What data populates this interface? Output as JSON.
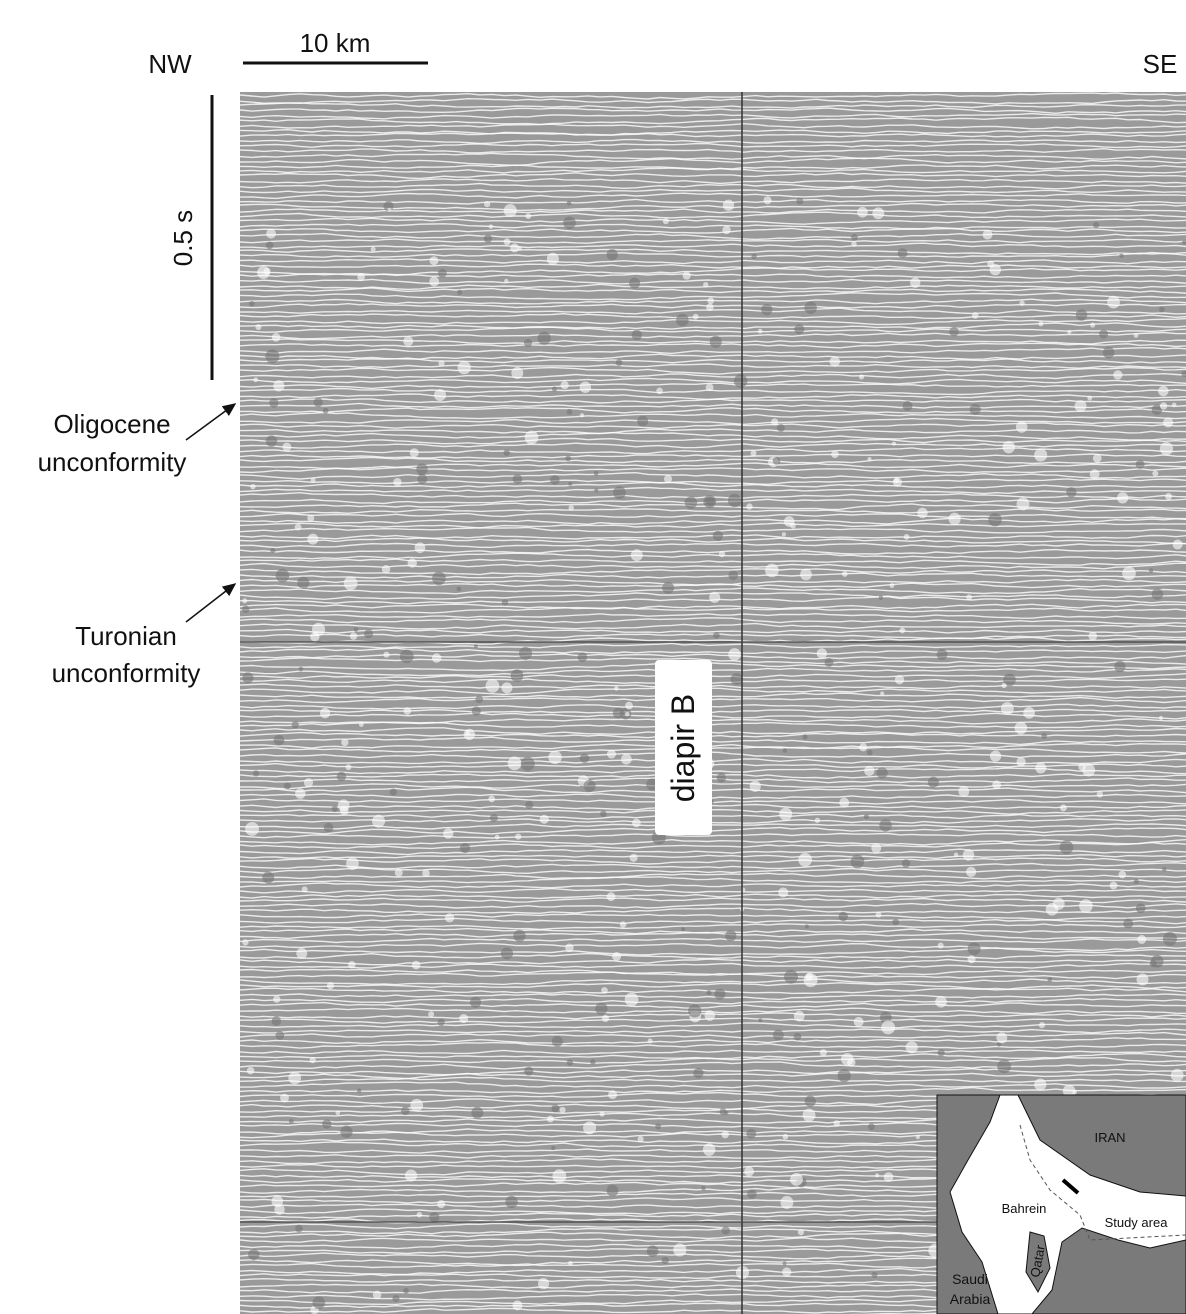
{
  "direction": {
    "left": "NW",
    "right": "SE"
  },
  "scale": {
    "horizontal": "10 km",
    "vertical": "0.5 s"
  },
  "annotations": [
    {
      "line1": "Oligocene",
      "line2": "unconformity"
    },
    {
      "line1": "Turonian",
      "line2": "unconformity"
    }
  ],
  "diapir": "diapir B",
  "inset_map": {
    "iran": "IRAN",
    "bahrein": "Bahrein",
    "study_area": "Study area",
    "qatar": "Qatar",
    "saudi_line1": "Saudi",
    "saudi_line2": "Arabia"
  }
}
